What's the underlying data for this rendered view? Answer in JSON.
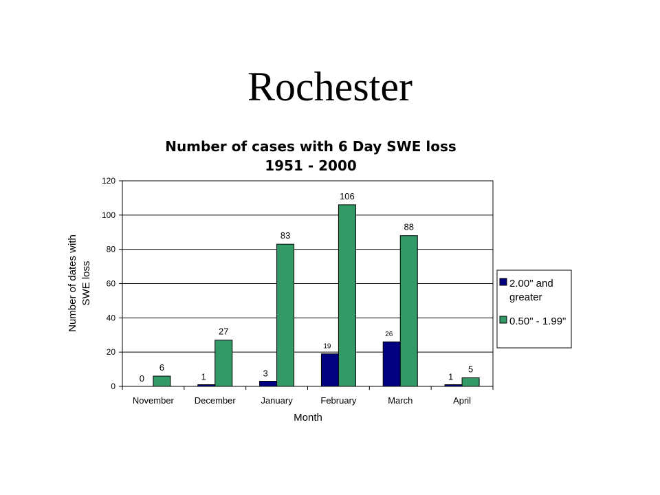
{
  "slide": {
    "title": "Rochester"
  },
  "colors": {
    "series1": "#000080",
    "series2": "#339966",
    "gridline": "#000000"
  },
  "chart_data": {
    "type": "bar",
    "title": [
      "Number of cases with 6 Day SWE loss",
      "1951 - 2000"
    ],
    "xlabel": "Month",
    "ylabel": [
      "Number of dates with",
      "SWE loss"
    ],
    "ylim": [
      0,
      120
    ],
    "yticks": [
      0,
      20,
      40,
      60,
      80,
      100,
      120
    ],
    "categories": [
      "November",
      "December",
      "January",
      "February",
      "March",
      "April"
    ],
    "series": [
      {
        "name": [
          "2.00\" and",
          "greater"
        ],
        "values": [
          0,
          1,
          3,
          19,
          26,
          1
        ]
      },
      {
        "name": [
          "0.50\" - 1.99\""
        ],
        "values": [
          6,
          27,
          83,
          106,
          88,
          5
        ]
      }
    ],
    "grid": true,
    "legend": "right"
  }
}
